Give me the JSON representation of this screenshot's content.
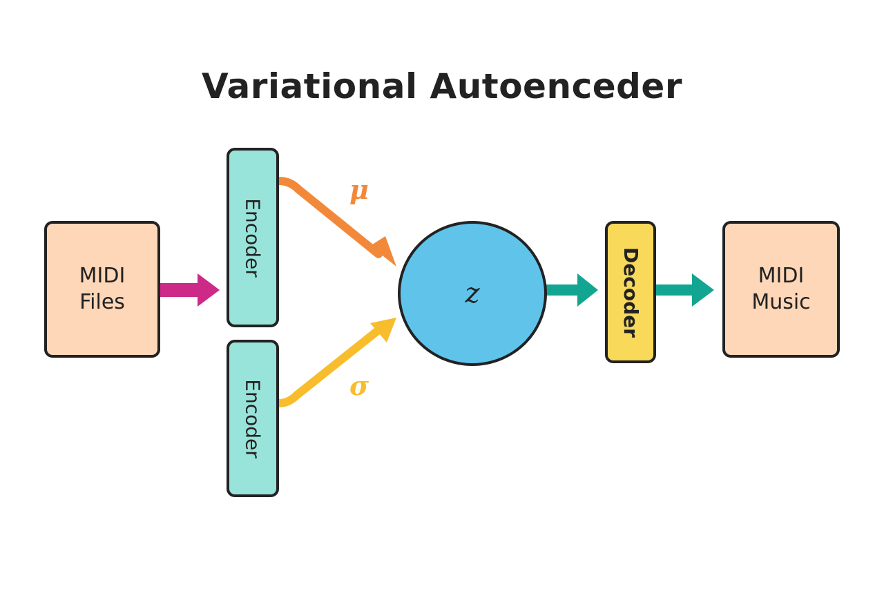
{
  "title": "Variational Autoenceder",
  "input": {
    "label": "MIDI\nFiles"
  },
  "encoder_top": {
    "label": "Encoder"
  },
  "encoder_bottom": {
    "label": "Encoder"
  },
  "mu": {
    "label": "μ"
  },
  "sigma": {
    "label": "σ"
  },
  "latent": {
    "label": "z"
  },
  "decoder": {
    "label": "Decoder"
  },
  "output": {
    "label": "MIDI\nMusic"
  },
  "colors": {
    "io_fill": "#fdd7b8",
    "encoder_fill": "#98e3da",
    "decoder_fill": "#f8d95a",
    "latent_fill": "#60c4ea",
    "input_arrow": "#cc2a86",
    "mu_arrow": "#f2893a",
    "sigma_arrow": "#f8bd2c",
    "output_arrow": "#12a692",
    "outline": "#222222"
  }
}
